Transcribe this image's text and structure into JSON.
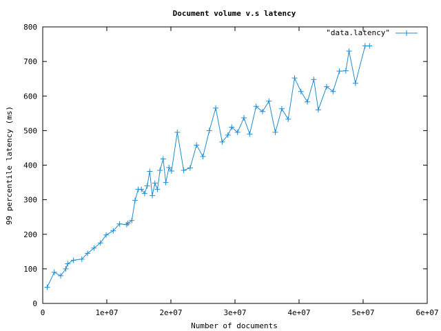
{
  "chart_data": {
    "type": "line",
    "title": "Document volume v.s latency",
    "xlabel": "Number of documents",
    "ylabel": "99 percentile latency (ms)",
    "xlim": [
      0,
      60000000
    ],
    "ylim": [
      0,
      800
    ],
    "x_ticks": [
      "0",
      "1e+07",
      "2e+07",
      "3e+07",
      "4e+07",
      "5e+07",
      "6e+07"
    ],
    "y_ticks": [
      "0",
      "100",
      "200",
      "300",
      "400",
      "500",
      "600",
      "700",
      "800"
    ],
    "grid": false,
    "legend_position": "top-right",
    "series": [
      {
        "name": "\"data.latency\"",
        "color": "#1f8bd0",
        "marker": "plus",
        "x": [
          700000,
          1800000,
          2800000,
          3600000,
          3900000,
          4800000,
          6100000,
          7000000,
          8000000,
          9000000,
          9900000,
          11000000,
          12000000,
          13100000,
          13300000,
          13900000,
          14400000,
          14900000,
          15400000,
          15900000,
          16300000,
          16700000,
          17100000,
          17500000,
          17900000,
          18300000,
          18800000,
          19200000,
          19700000,
          20100000,
          21000000,
          22000000,
          23000000,
          24000000,
          25000000,
          26000000,
          27000000,
          28000000,
          28900000,
          29500000,
          30400000,
          31400000,
          32300000,
          33300000,
          34300000,
          35300000,
          36300000,
          37300000,
          38300000,
          39300000,
          40300000,
          41300000,
          42300000,
          43000000,
          44300000,
          45300000,
          46300000,
          47300000,
          47800000,
          48800000,
          50300000,
          51000000
        ],
        "y": [
          47,
          90,
          80,
          100,
          115,
          125,
          128,
          145,
          160,
          175,
          198,
          210,
          230,
          228,
          232,
          240,
          298,
          330,
          330,
          318,
          340,
          382,
          312,
          348,
          330,
          385,
          418,
          350,
          393,
          383,
          495,
          385,
          392,
          458,
          425,
          500,
          565,
          467,
          487,
          510,
          495,
          537,
          490,
          570,
          555,
          585,
          495,
          563,
          533,
          652,
          613,
          583,
          648,
          560,
          627,
          613,
          672,
          673,
          730,
          637,
          745,
          745
        ]
      }
    ]
  }
}
